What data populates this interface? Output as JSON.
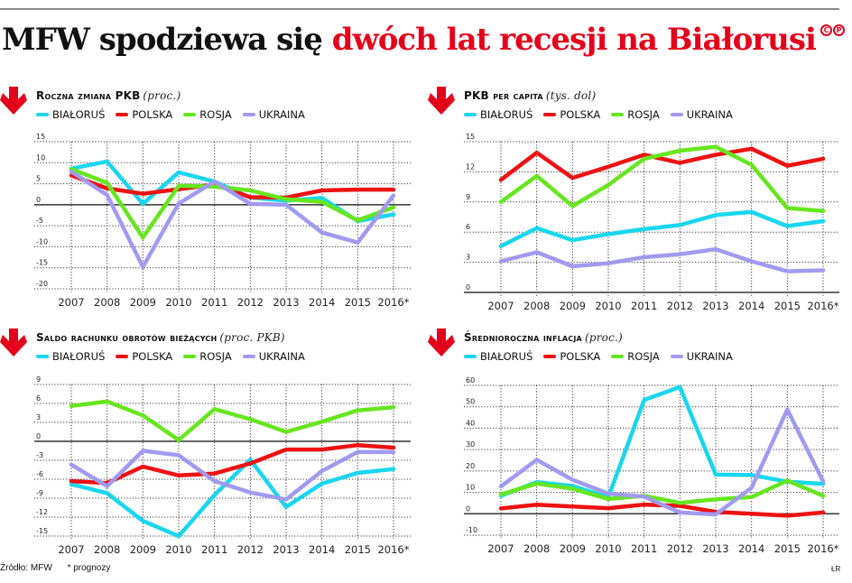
{
  "header": {
    "title_black": "MFW spodziewa się",
    "title_red": "dwóch lat recesji na Białorusi",
    "logo_left": "C",
    "logo_right": "P",
    "accent_color": "#e4001b"
  },
  "legend": {
    "items": [
      {
        "label": "BIAŁORUŚ",
        "color": "#19d6ee"
      },
      {
        "label": "POLSKA",
        "color": "#ee1111"
      },
      {
        "label": "ROSJA",
        "color": "#66e61e"
      },
      {
        "label": "UKRAINA",
        "color": "#a09af0"
      }
    ]
  },
  "footer": {
    "source": "Źródło: MFW",
    "note": "* prognozy",
    "credit": "ŁR"
  },
  "panels": [
    {
      "title": "Roczna zmiana PKB",
      "unit": "(proc.)"
    },
    {
      "title": "PKB per capita",
      "unit": "(tys. dol)"
    },
    {
      "title": "Saldo rachunku obrotów bieżących",
      "unit": "(proc. PKB)"
    },
    {
      "title": "Średnioroczna inflacja",
      "unit": "(proc.)"
    }
  ],
  "chart_data": [
    {
      "type": "line",
      "title": "Roczna zmiana PKB (proc.)",
      "xlabel": "",
      "ylabel": "",
      "x": [
        "2007",
        "2008",
        "2009",
        "2010",
        "2011",
        "2012",
        "2013",
        "2014",
        "2015",
        "2016*"
      ],
      "yticks": [
        15,
        10,
        5,
        0,
        -5,
        -10,
        -15,
        -20
      ],
      "ylim": [
        -20,
        15
      ],
      "grid": true,
      "legend_position": "top",
      "series": [
        {
          "name": "BIAŁORUŚ",
          "color": "#19d6ee",
          "values": [
            8.6,
            10.3,
            0.2,
            7.7,
            5.5,
            1.7,
            1.0,
            1.6,
            -3.9,
            -2.3
          ]
        },
        {
          "name": "POLSKA",
          "color": "#ee1111",
          "values": [
            7.0,
            3.9,
            2.6,
            3.7,
            4.8,
            1.8,
            1.7,
            3.4,
            3.6,
            3.6
          ]
        },
        {
          "name": "ROSJA",
          "color": "#66e61e",
          "values": [
            8.5,
            5.2,
            -7.8,
            4.5,
            4.3,
            3.4,
            1.3,
            0.7,
            -3.7,
            -0.6
          ]
        },
        {
          "name": "UKRAINA",
          "color": "#a09af0",
          "values": [
            7.9,
            2.3,
            -14.8,
            0.3,
            5.5,
            0.2,
            0.0,
            -6.6,
            -9.0,
            2.2
          ]
        }
      ]
    },
    {
      "type": "line",
      "title": "PKB per capita (tys. dol)",
      "xlabel": "",
      "ylabel": "",
      "x": [
        "2007",
        "2008",
        "2009",
        "2010",
        "2011",
        "2012",
        "2013",
        "2014",
        "2015",
        "2016*"
      ],
      "yticks": [
        15,
        12,
        9,
        6,
        3,
        0
      ],
      "ylim": [
        0,
        15
      ],
      "grid": true,
      "legend_position": "top",
      "series": [
        {
          "name": "BIAŁORUŚ",
          "color": "#19d6ee",
          "values": [
            4.6,
            6.4,
            5.2,
            5.8,
            6.3,
            6.7,
            7.7,
            8.0,
            6.6,
            7.1
          ]
        },
        {
          "name": "POLSKA",
          "color": "#ee1111",
          "values": [
            11.2,
            13.9,
            11.4,
            12.5,
            13.7,
            12.9,
            13.7,
            14.3,
            12.6,
            13.3
          ]
        },
        {
          "name": "ROSJA",
          "color": "#66e61e",
          "values": [
            9.0,
            11.6,
            8.6,
            10.7,
            13.3,
            14.1,
            14.5,
            12.7,
            8.4,
            8.1
          ]
        },
        {
          "name": "UKRAINA",
          "color": "#a09af0",
          "values": [
            3.1,
            4.0,
            2.6,
            2.9,
            3.5,
            3.8,
            4.3,
            3.1,
            2.1,
            2.2
          ]
        }
      ]
    },
    {
      "type": "line",
      "title": "Saldo rachunku obrotów bieżących (proc. PKB)",
      "xlabel": "",
      "ylabel": "",
      "x": [
        "2007",
        "2008",
        "2009",
        "2010",
        "2011",
        "2012",
        "2013",
        "2014",
        "2015",
        "2016*"
      ],
      "yticks": [
        9,
        6,
        3,
        0,
        -3,
        -6,
        -9,
        -12,
        -15
      ],
      "ylim": [
        -15,
        9
      ],
      "grid": true,
      "legend_position": "top",
      "series": [
        {
          "name": "BIAŁORUŚ",
          "color": "#19d6ee",
          "values": [
            -6.8,
            -8.2,
            -12.6,
            -15.0,
            -8.5,
            -2.9,
            -10.4,
            -6.7,
            -5.0,
            -4.4
          ]
        },
        {
          "name": "POLSKA",
          "color": "#ee1111",
          "values": [
            -6.3,
            -6.6,
            -4.0,
            -5.4,
            -5.1,
            -3.5,
            -1.3,
            -1.3,
            -0.6,
            -1.0
          ]
        },
        {
          "name": "ROSJA",
          "color": "#66e61e",
          "values": [
            5.6,
            6.3,
            4.1,
            0.2,
            5.1,
            3.5,
            1.5,
            3.1,
            4.9,
            5.4
          ]
        },
        {
          "name": "UKRAINA",
          "color": "#a09af0",
          "values": [
            -3.7,
            -7.1,
            -1.5,
            -2.2,
            -6.3,
            -8.1,
            -9.2,
            -4.7,
            -1.7,
            -1.7
          ]
        }
      ]
    },
    {
      "type": "line",
      "title": "Średnioroczna inflacja (proc.)",
      "xlabel": "",
      "ylabel": "",
      "x": [
        "2007",
        "2008",
        "2009",
        "2010",
        "2011",
        "2012",
        "2013",
        "2014",
        "2015",
        "2016*"
      ],
      "yticks": [
        60,
        50,
        40,
        30,
        20,
        10,
        0,
        -10
      ],
      "ylim": [
        -10,
        60
      ],
      "grid": true,
      "legend_position": "top",
      "series": [
        {
          "name": "BIAŁORUŚ",
          "color": "#19d6ee",
          "values": [
            8.4,
            14.8,
            13.0,
            7.7,
            53.2,
            59.2,
            18.3,
            18.1,
            15.0,
            14.0
          ]
        },
        {
          "name": "POLSKA",
          "color": "#ee1111",
          "values": [
            2.5,
            4.2,
            3.4,
            2.6,
            4.3,
            3.7,
            0.9,
            0.0,
            -0.9,
            0.6
          ]
        },
        {
          "name": "ROSJA",
          "color": "#66e61e",
          "values": [
            9.0,
            14.1,
            11.7,
            6.9,
            8.4,
            5.1,
            6.8,
            7.8,
            15.5,
            8.4
          ]
        },
        {
          "name": "UKRAINA",
          "color": "#a09af0",
          "values": [
            12.8,
            25.2,
            15.9,
            9.4,
            8.0,
            0.6,
            -0.3,
            12.1,
            48.7,
            15.1
          ]
        }
      ]
    }
  ]
}
